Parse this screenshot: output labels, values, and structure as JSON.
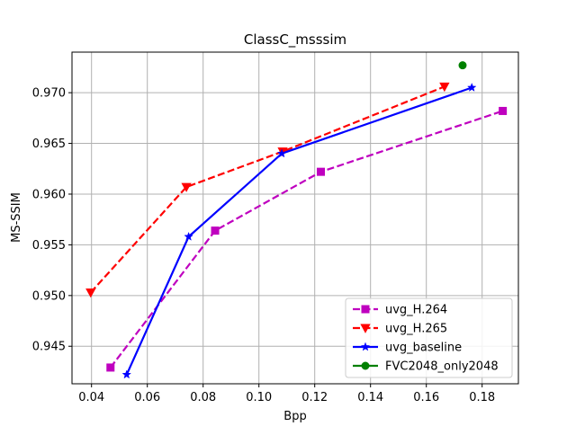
{
  "chart_data": {
    "type": "line",
    "title": "ClassC_msssim",
    "xlabel": "Bpp",
    "ylabel": "MS-SSIM",
    "xlim": [
      0.033,
      0.193
    ],
    "ylim": [
      0.9413,
      0.974
    ],
    "xticks": [
      0.04,
      0.06,
      0.08,
      0.1,
      0.12,
      0.14,
      0.16,
      0.18
    ],
    "xtick_labels": [
      "0.04",
      "0.06",
      "0.08",
      "0.10",
      "0.12",
      "0.14",
      "0.16",
      "0.18"
    ],
    "yticks": [
      0.945,
      0.95,
      0.955,
      0.96,
      0.965,
      0.97
    ],
    "ytick_labels": [
      "0.945",
      "0.950",
      "0.955",
      "0.960",
      "0.965",
      "0.970"
    ],
    "grid": true,
    "legend_position": "lower right",
    "series": [
      {
        "name": "uvg_H.264",
        "color": "#bf00bf",
        "linestyle": "dashed",
        "marker": "square",
        "x": [
          0.0468,
          0.0843,
          0.1222,
          0.1874
        ],
        "y": [
          0.9429,
          0.9564,
          0.9622,
          0.9682
        ]
      },
      {
        "name": "uvg_H.265",
        "color": "#ff0000",
        "linestyle": "dashed",
        "marker": "triangle-down",
        "x": [
          0.0397,
          0.074,
          0.1085,
          0.1665
        ],
        "y": [
          0.9503,
          0.9607,
          0.9642,
          0.9706
        ]
      },
      {
        "name": "uvg_baseline",
        "color": "#0000ff",
        "linestyle": "solid",
        "marker": "star",
        "x": [
          0.0526,
          0.0748,
          0.1082,
          0.1763
        ],
        "y": [
          0.9422,
          0.9558,
          0.964,
          0.9705
        ]
      },
      {
        "name": "FVC2048_only2048",
        "color": "#008000",
        "linestyle": "solid",
        "marker": "circle",
        "x": [
          0.173
        ],
        "y": [
          0.9727
        ]
      }
    ]
  }
}
